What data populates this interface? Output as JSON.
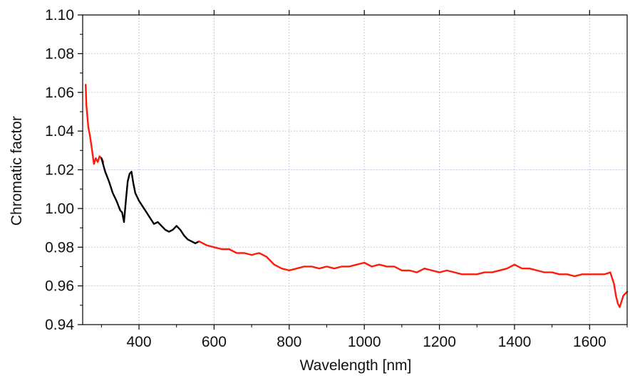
{
  "chart_data": {
    "type": "line",
    "title": "",
    "xlabel": "Wavelength [nm]",
    "ylabel": "Chromatic factor",
    "xlim": [
      250,
      1700
    ],
    "ylim": [
      0.94,
      1.1
    ],
    "xticks": [
      400,
      600,
      800,
      1000,
      1200,
      1400,
      1600
    ],
    "xtick_labels": [
      "400",
      "600",
      "800",
      "1000",
      "1200",
      "1400",
      "1600"
    ],
    "yticks": [
      0.94,
      0.96,
      0.98,
      1.0,
      1.02,
      1.04,
      1.06,
      1.08,
      1.1
    ],
    "ytick_labels": [
      "0.94",
      "0.96",
      "0.98",
      "1.00",
      "1.02",
      "1.04",
      "1.06",
      "1.08",
      "1.10"
    ],
    "grid": true,
    "legend": "none",
    "colors": {
      "series_red": "#ff1a0a",
      "series_black": "#000000",
      "grid": "#c9c9e6"
    },
    "series": [
      {
        "color": "#ff1a0a",
        "x": [
          258,
          260,
          265,
          270,
          275,
          280,
          285,
          290,
          295,
          300,
          305
        ],
        "y": [
          1.064,
          1.053,
          1.042,
          1.037,
          1.03,
          1.023,
          1.026,
          1.024,
          1.027,
          1.026,
          1.024
        ]
      },
      {
        "color": "#000000",
        "x": [
          300,
          310,
          320,
          330,
          340,
          350,
          355,
          360,
          365,
          370,
          375,
          380,
          385,
          390,
          400,
          410,
          420,
          430,
          440,
          450,
          460,
          470,
          480,
          490,
          500,
          510,
          520,
          530,
          540,
          550,
          560
        ],
        "y": [
          1.026,
          1.019,
          1.014,
          1.008,
          1.004,
          0.999,
          0.998,
          0.993,
          1.004,
          1.014,
          1.018,
          1.019,
          1.013,
          1.008,
          1.004,
          1.001,
          0.998,
          0.995,
          0.992,
          0.993,
          0.991,
          0.989,
          0.988,
          0.989,
          0.991,
          0.989,
          0.986,
          0.984,
          0.983,
          0.982,
          0.983
        ]
      },
      {
        "color": "#ff1a0a",
        "x": [
          560,
          580,
          600,
          620,
          640,
          660,
          680,
          700,
          720,
          740,
          760,
          780,
          800,
          820,
          840,
          860,
          880,
          900,
          920,
          940,
          960,
          980,
          1000,
          1020,
          1040,
          1060,
          1080,
          1100,
          1120,
          1140,
          1160,
          1180,
          1200,
          1220,
          1240,
          1260,
          1280,
          1300,
          1320,
          1340,
          1360,
          1380,
          1400,
          1420,
          1440,
          1460,
          1480,
          1500,
          1520,
          1540,
          1560,
          1580,
          1600,
          1620,
          1640,
          1655,
          1665,
          1670,
          1675,
          1680,
          1685,
          1690,
          1695,
          1700
        ],
        "y": [
          0.983,
          0.981,
          0.98,
          0.979,
          0.979,
          0.977,
          0.977,
          0.976,
          0.977,
          0.975,
          0.971,
          0.969,
          0.968,
          0.969,
          0.97,
          0.97,
          0.969,
          0.97,
          0.969,
          0.97,
          0.97,
          0.971,
          0.972,
          0.97,
          0.971,
          0.97,
          0.97,
          0.968,
          0.968,
          0.967,
          0.969,
          0.968,
          0.967,
          0.968,
          0.967,
          0.966,
          0.966,
          0.966,
          0.967,
          0.967,
          0.968,
          0.969,
          0.971,
          0.969,
          0.969,
          0.968,
          0.967,
          0.967,
          0.966,
          0.966,
          0.965,
          0.966,
          0.966,
          0.966,
          0.966,
          0.967,
          0.961,
          0.955,
          0.951,
          0.949,
          0.952,
          0.955,
          0.956,
          0.957
        ]
      }
    ]
  }
}
